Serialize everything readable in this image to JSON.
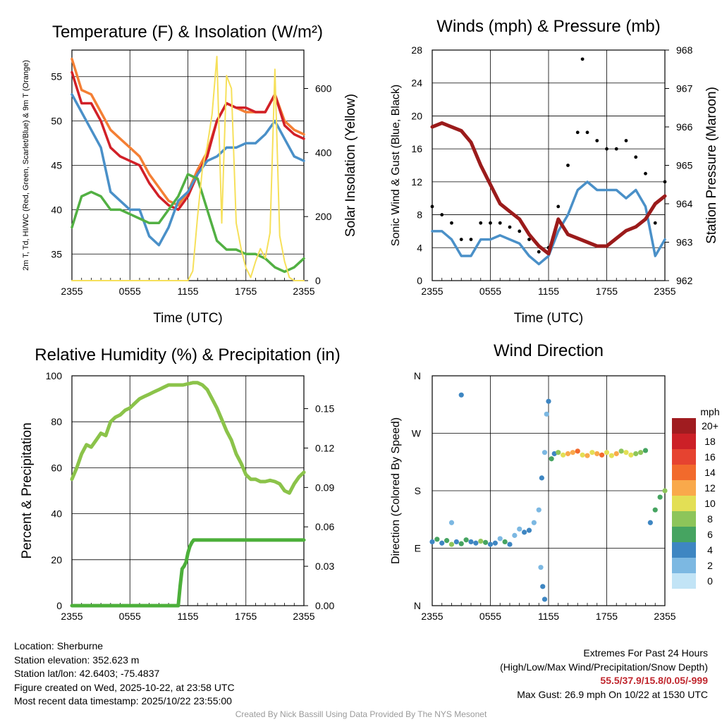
{
  "chart_data": [
    {
      "type": "line",
      "title": "Temperature (F) & Insolation (W/m²)",
      "xlabel": "Time (UTC)",
      "ylabel": "2m T, Td, HI/WC (Red, Green, Scarlet/Blue) & 9m T (Orange)",
      "y2label": "Solar Insolation (Yellow)",
      "x_ticks": [
        "2355",
        "0555",
        "1155",
        "1755",
        "2355"
      ],
      "y_ticks": [
        35,
        40,
        45,
        50,
        55
      ],
      "y2_ticks": [
        0,
        200,
        400,
        600
      ],
      "ylim": [
        32,
        58
      ],
      "y2lim": [
        0,
        720
      ],
      "series": [
        {
          "name": "9m Temperature",
          "color": "#f47f34",
          "axis": "left",
          "x": [
            0,
            1,
            2,
            3,
            4,
            5,
            6,
            7,
            8,
            9,
            10,
            11,
            12,
            13,
            14,
            15,
            16,
            17,
            18,
            19,
            20,
            21,
            22,
            23,
            24
          ],
          "values": [
            57,
            53.5,
            53,
            51,
            49,
            48,
            47,
            46,
            44,
            42.5,
            41,
            40.5,
            42,
            44.5,
            46.5,
            50,
            52,
            51.5,
            51,
            51,
            51,
            53,
            50,
            49,
            48.5
          ]
        },
        {
          "name": "2m Temperature",
          "color": "#d12028",
          "axis": "left",
          "x": [
            0,
            1,
            2,
            3,
            4,
            5,
            6,
            7,
            8,
            9,
            10,
            11,
            12,
            13,
            14,
            15,
            16,
            17,
            18,
            19,
            20,
            21,
            22,
            23,
            24
          ],
          "values": [
            55.5,
            52,
            52,
            50,
            47,
            46,
            45.5,
            45,
            43,
            41.5,
            40.5,
            40,
            41.5,
            44,
            46,
            50,
            52,
            51.5,
            51.5,
            51,
            51,
            53,
            49.5,
            48.5,
            48
          ]
        },
        {
          "name": "Heat Index / Wind Chill",
          "color": "#4a90c8",
          "axis": "left",
          "x": [
            0,
            1,
            2,
            3,
            4,
            5,
            6,
            7,
            8,
            9,
            10,
            11,
            12,
            13,
            14,
            15,
            16,
            17,
            18,
            19,
            20,
            21,
            22,
            23,
            24
          ],
          "values": [
            53,
            51,
            49,
            47,
            42,
            41,
            40,
            40,
            37,
            36,
            38,
            41,
            42,
            44,
            45.5,
            46,
            47,
            47,
            47.5,
            47.5,
            48.5,
            50,
            48,
            46,
            45.5
          ]
        },
        {
          "name": "Dewpoint",
          "color": "#52b043",
          "axis": "left",
          "x": [
            0,
            1,
            2,
            3,
            4,
            5,
            6,
            7,
            8,
            9,
            10,
            11,
            12,
            13,
            14,
            15,
            16,
            17,
            18,
            19,
            20,
            21,
            22,
            23,
            24
          ],
          "values": [
            38,
            41.5,
            42,
            41.5,
            40,
            40,
            39.5,
            39,
            38.5,
            38.5,
            40,
            41.5,
            44,
            43.5,
            40,
            36.5,
            35.5,
            35.5,
            35,
            35,
            34.5,
            33.5,
            33,
            33.5,
            34.5
          ]
        },
        {
          "name": "Solar Insolation",
          "color": "#f6e05a",
          "axis": "right",
          "x": [
            0,
            12,
            12.5,
            13,
            13.5,
            14,
            14.5,
            15,
            15.5,
            16,
            16.5,
            17,
            17.5,
            18,
            18.5,
            19,
            19.5,
            20,
            20.5,
            21,
            21.5,
            22,
            22.5,
            23,
            24
          ],
          "values": [
            0,
            0,
            30,
            200,
            350,
            420,
            520,
            700,
            180,
            640,
            600,
            180,
            100,
            40,
            10,
            60,
            100,
            70,
            150,
            660,
            140,
            60,
            10,
            0,
            0
          ]
        }
      ]
    },
    {
      "type": "line",
      "title": "Winds (mph) & Pressure (mb)",
      "xlabel": "Time (UTC)",
      "ylabel": "Sonic Wind & Gust (Blue, Black)",
      "y2label": "Station Pressure (Maroon)",
      "x_ticks": [
        "2355",
        "0555",
        "1155",
        "1755",
        "2355"
      ],
      "y_ticks": [
        0,
        4,
        8,
        12,
        16,
        20,
        24,
        28
      ],
      "y2_ticks": [
        962,
        963,
        964,
        965,
        966,
        967,
        968
      ],
      "ylim": [
        0,
        28
      ],
      "y2lim": [
        962,
        968
      ],
      "series": [
        {
          "name": "Sonic Wind",
          "color": "#4a90c8",
          "axis": "left",
          "x": [
            0,
            1,
            2,
            3,
            4,
            5,
            6,
            7,
            8,
            9,
            10,
            11,
            12,
            13,
            14,
            15,
            16,
            17,
            18,
            19,
            20,
            21,
            22,
            23,
            24
          ],
          "values": [
            6,
            6,
            5,
            3,
            3,
            5,
            5,
            5.5,
            5,
            4.5,
            3,
            2,
            3,
            6,
            8,
            11,
            12,
            11,
            11,
            11,
            10,
            11,
            9,
            3,
            5
          ]
        },
        {
          "name": "Gust",
          "color": "#000000",
          "axis": "left",
          "x": [
            0,
            1,
            2,
            3,
            4,
            5,
            6,
            7,
            8,
            9,
            10,
            11,
            12,
            13,
            14,
            15,
            15.5,
            16,
            17,
            18,
            19,
            20,
            21,
            22,
            23,
            24
          ],
          "values": [
            9,
            8,
            7,
            5,
            5,
            7,
            7,
            7,
            6.5,
            6,
            5,
            3.5,
            4,
            9,
            14,
            18,
            26.9,
            18,
            17,
            16,
            16,
            17,
            15,
            13,
            7,
            12
          ]
        },
        {
          "name": "Station Pressure",
          "color": "#9b1b1b",
          "axis": "right",
          "x": [
            0,
            1,
            2,
            3,
            4,
            5,
            6,
            7,
            8,
            9,
            10,
            11,
            12,
            13,
            14,
            15,
            16,
            17,
            18,
            19,
            20,
            21,
            22,
            23,
            24
          ],
          "values": [
            966.0,
            966.1,
            966.0,
            965.9,
            965.6,
            965.0,
            964.5,
            964.0,
            963.8,
            963.6,
            963.2,
            962.9,
            962.7,
            963.6,
            963.2,
            963.1,
            963.0,
            962.9,
            962.9,
            963.1,
            963.3,
            963.4,
            963.6,
            964.0,
            964.2
          ]
        }
      ]
    },
    {
      "type": "line",
      "title": "Relative Humidity (%) & Precipitation (in)",
      "xlabel": "",
      "ylabel": "Percent & Precipitation",
      "x_ticks": [
        "2355",
        "0555",
        "1155",
        "1755",
        "2355"
      ],
      "y_ticks": [
        0,
        20,
        40,
        60,
        80,
        100
      ],
      "y2_ticks": [
        "0.00",
        "0.03",
        "0.06",
        "0.09",
        "0.12",
        "0.15"
      ],
      "ylim": [
        0,
        100
      ],
      "y2lim": [
        0,
        0.175
      ],
      "series": [
        {
          "name": "Relative Humidity",
          "color": "#8bc34a",
          "axis": "left",
          "x": [
            0,
            0.5,
            1,
            1.5,
            2,
            2.5,
            3,
            3.5,
            4,
            4.5,
            5,
            5.5,
            6,
            6.5,
            7,
            7.5,
            8,
            8.5,
            9,
            9.5,
            10,
            10.5,
            11,
            11.5,
            12,
            12.5,
            13,
            13.5,
            14,
            14.5,
            15,
            15.5,
            16,
            16.5,
            17,
            17.5,
            18,
            18.5,
            19,
            19.5,
            20,
            20.5,
            21,
            21.5,
            22,
            22.5,
            23,
            23.5,
            24
          ],
          "values": [
            55,
            60,
            66,
            70,
            69,
            72,
            75,
            74,
            80,
            82,
            83,
            85,
            86,
            88,
            90,
            91,
            92,
            93,
            94,
            95,
            96,
            96,
            96,
            96,
            96.5,
            97,
            97,
            96,
            94,
            90,
            86,
            81,
            76,
            72,
            66,
            62,
            57,
            55,
            55,
            54,
            54,
            54.5,
            54,
            53,
            50,
            49,
            53,
            56,
            58
          ]
        },
        {
          "name": "Precipitation",
          "color": "#4caf3a",
          "axis": "right",
          "x": [
            0,
            0.5,
            1,
            1.5,
            2,
            2.5,
            3,
            3.5,
            4,
            4.5,
            5,
            5.5,
            6,
            6.5,
            7,
            7.5,
            8,
            8.5,
            9,
            9.5,
            10,
            10.5,
            11,
            11.2,
            11.4,
            11.6,
            11.8,
            12,
            12.2,
            12.4,
            12.6,
            13,
            13.5,
            14,
            14.5,
            15,
            15.5,
            16,
            16.5,
            17,
            17.5,
            18,
            18.5,
            19,
            19.5,
            20,
            20.5,
            21,
            21.5,
            22,
            22.5,
            23,
            23.5,
            24
          ],
          "values": [
            0,
            0,
            0,
            0,
            0,
            0,
            0,
            0,
            0,
            0,
            0,
            0,
            0,
            0,
            0,
            0,
            0,
            0,
            0,
            0,
            0,
            0,
            0,
            0.015,
            0.028,
            0.03,
            0.033,
            0.04,
            0.045,
            0.048,
            0.05,
            0.05,
            0.05,
            0.05,
            0.05,
            0.05,
            0.05,
            0.05,
            0.05,
            0.05,
            0.05,
            0.05,
            0.05,
            0.05,
            0.05,
            0.05,
            0.05,
            0.05,
            0.05,
            0.05,
            0.05,
            0.05,
            0.05,
            0.05
          ]
        }
      ]
    },
    {
      "type": "scatter",
      "title": "Wind Direction",
      "ylabel": "Direction (Colored By Speed)",
      "x_ticks": [
        "2355",
        "0555",
        "1155",
        "1755",
        "2355"
      ],
      "y_ticks": [
        "N",
        "E",
        "S",
        "W",
        "N"
      ],
      "ylim": [
        0,
        360
      ],
      "colorbar": {
        "title": "mph",
        "labels": [
          "20+",
          "18",
          "16",
          "14",
          "12",
          "10",
          "8",
          "6",
          "4",
          "2",
          "0"
        ],
        "colors": [
          "#a01c20",
          "#cc2027",
          "#e64330",
          "#f26a2c",
          "#f9a94b",
          "#e3df55",
          "#8dc55a",
          "#46a461",
          "#3e86c2",
          "#7cb8e2",
          "#c2e4f6"
        ]
      },
      "series": [
        {
          "name": "Wind Direction",
          "x": [
            0,
            0.5,
            1,
            1.5,
            2,
            2.5,
            3,
            3.5,
            4,
            4.5,
            5,
            5.5,
            6,
            6.5,
            7,
            7.5,
            8,
            8.5,
            9,
            9.5,
            10,
            10.5,
            11,
            11.3,
            11.6,
            11.8,
            12,
            12.3,
            12.6,
            13,
            13.5,
            14,
            14.5,
            15,
            15.5,
            16,
            16.5,
            17,
            17.5,
            18,
            18.5,
            19,
            19.5,
            20,
            20.5,
            21,
            21.5,
            22,
            22.5,
            23,
            23.5,
            24,
            2,
            3,
            11.2,
            11.4,
            11.6
          ],
          "values": [
            100,
            104,
            98,
            102,
            96,
            100,
            97,
            103,
            100,
            98,
            101,
            99,
            96,
            98,
            105,
            100,
            96,
            110,
            120,
            115,
            118,
            130,
            150,
            200,
            240,
            300,
            320,
            230,
            238,
            240,
            236,
            238,
            240,
            242,
            236,
            235,
            240,
            238,
            236,
            240,
            235,
            238,
            242,
            240,
            236,
            238,
            240,
            243,
            130,
            150,
            170,
            180,
            130,
            330,
            60,
            30,
            10
          ],
          "speeds": [
            4,
            6,
            3,
            5,
            7,
            4,
            5,
            6,
            3,
            4,
            7,
            5,
            3,
            4,
            2,
            6,
            4,
            1,
            2,
            3,
            4,
            2,
            1,
            3,
            2,
            1,
            3,
            5,
            4,
            7,
            10,
            11,
            12,
            14,
            9,
            11,
            10,
            12,
            13,
            9,
            10,
            11,
            8,
            9,
            10,
            7,
            8,
            6,
            4,
            5,
            6,
            7,
            2,
            3,
            2,
            3,
            4
          ]
        }
      ]
    }
  ],
  "footer": {
    "location": "Location: Sherburne",
    "elevation": "Station elevation: 352.623 m",
    "latlon": "Station lat/lon: 42.6403; -75.4837",
    "created": "Figure created on Wed, 2025-10-22, at 23:58 UTC",
    "recent": "Most recent data timestamp: 2025/10/22 23:55:00",
    "extremes_title": "Extremes For Past 24 Hours",
    "extremes_sub": "(High/Low/Max Wind/Precipitation/Snow Depth)",
    "extremes_values": "55.5/37.9/15.8/0.05/-999",
    "max_gust": "Max Gust: 26.9 mph On 10/22 at 1530 UTC",
    "credit": "Created By Nick Bassill Using Data Provided By The NYS Mesonet"
  }
}
